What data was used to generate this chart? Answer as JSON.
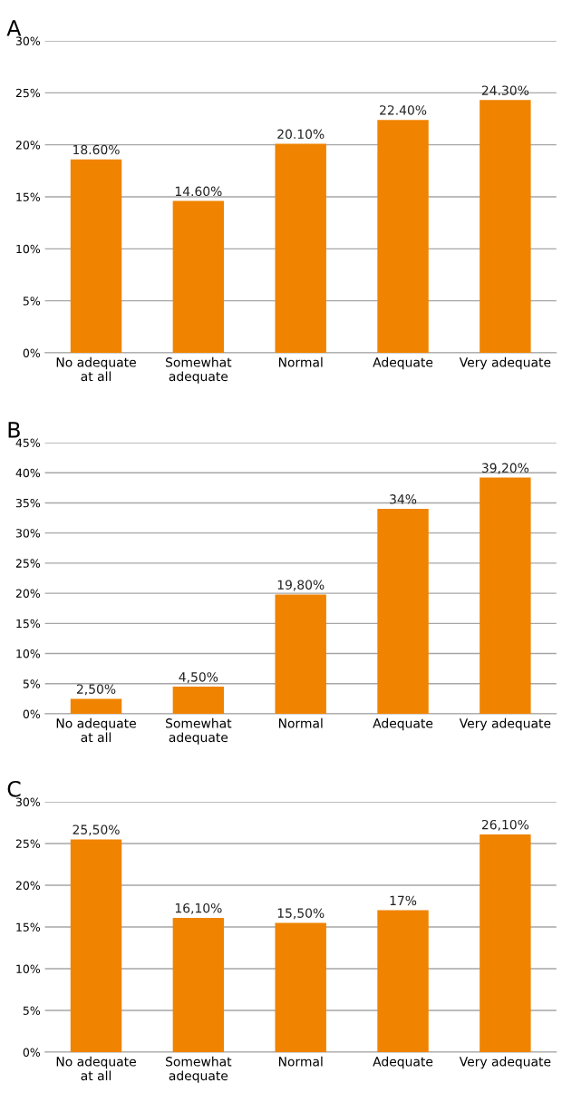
{
  "chart_data": [
    {
      "type": "bar",
      "title": "A",
      "categories": [
        "No adequate\nat all",
        "Somewhat\nadequate",
        "Normal",
        "Adequate",
        "Very adequate"
      ],
      "values": [
        18.6,
        14.6,
        20.1,
        22.4,
        24.3
      ],
      "value_labels": [
        "18.60%",
        "14.60%",
        "20.10%",
        "22.40%",
        "24.30%"
      ],
      "color": "#f08300",
      "ylim": [
        0,
        30
      ],
      "yticks": [
        {
          "value": 0,
          "label": "0%"
        },
        {
          "value": 5,
          "label": "5%"
        },
        {
          "value": 10,
          "label": "10%"
        },
        {
          "value": 15,
          "label": "15%"
        },
        {
          "value": 20,
          "label": "20%"
        },
        {
          "value": 25,
          "label": "25%"
        },
        {
          "value": 30,
          "label": "30%"
        }
      ],
      "grid": "y",
      "legend": false
    },
    {
      "type": "bar",
      "title": "B",
      "categories": [
        "No adequate\nat all",
        "Somewhat\nadequate",
        "Normal",
        "Adequate",
        "Very adequate"
      ],
      "values": [
        2.5,
        4.5,
        19.8,
        34,
        39.2
      ],
      "value_labels": [
        "2,50%",
        "4,50%",
        "19,80%",
        "34%",
        "39,20%"
      ],
      "color": "#f08300",
      "ylim": [
        0,
        45
      ],
      "yticks": [
        {
          "value": 0,
          "label": "0%"
        },
        {
          "value": 5,
          "label": "5%"
        },
        {
          "value": 10,
          "label": "10%"
        },
        {
          "value": 15,
          "label": "15%"
        },
        {
          "value": 20,
          "label": "20%"
        },
        {
          "value": 25,
          "label": "25%"
        },
        {
          "value": 30,
          "label": "30%"
        },
        {
          "value": 35,
          "label": "35%"
        },
        {
          "value": 40,
          "label": "40%"
        },
        {
          "value": 45,
          "label": "45%"
        }
      ],
      "grid": "y",
      "legend": false
    },
    {
      "type": "bar",
      "title": "C",
      "categories": [
        "No adequate\nat all",
        "Somewhat\nadequate",
        "Normal",
        "Adequate",
        "Very adequate"
      ],
      "values": [
        25.5,
        16.1,
        15.5,
        17,
        26.1
      ],
      "value_labels": [
        "25,50%",
        "16,10%",
        "15,50%",
        "17%",
        "26,10%"
      ],
      "color": "#f08300",
      "ylim": [
        0,
        30
      ],
      "yticks": [
        {
          "value": 0,
          "label": "0%"
        },
        {
          "value": 5,
          "label": "5%"
        },
        {
          "value": 10,
          "label": "10%"
        },
        {
          "value": 15,
          "label": "15%"
        },
        {
          "value": 20,
          "label": "20%"
        },
        {
          "value": 25,
          "label": "25%"
        },
        {
          "value": 30,
          "label": "30%"
        }
      ],
      "grid": "y",
      "legend": false
    }
  ]
}
